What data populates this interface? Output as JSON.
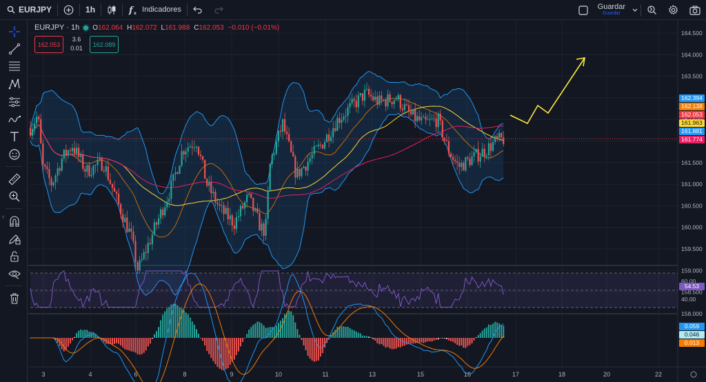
{
  "toolbar": {
    "symbol": "EURJPY",
    "interval": "1h",
    "indicators_label": "Indicadores",
    "save_label": "Guardar",
    "save_sub": "Guardar"
  },
  "legend": {
    "title": "EURJPY · 1h",
    "o_label": "O",
    "o_value": "162.064",
    "h_label": "H",
    "h_value": "162.072",
    "l_label": "L",
    "l_value": "161.988",
    "c_label": "C",
    "c_value": "162.053",
    "change": "−0.010 (−0.01%)",
    "sell_price": "162.053",
    "spread_top": "3.6",
    "spread_bottom": "0.01",
    "buy_price": "162.089"
  },
  "price_axis": [
    "164.500",
    "164.000",
    "163.500",
    "163.000",
    "162.500",
    "162.000",
    "161.500",
    "161.000",
    "160.500",
    "160.000",
    "159.500",
    "159.000",
    "158.500",
    "158.000"
  ],
  "price_tags": [
    {
      "value": "162.394",
      "color": "#2196f3"
    },
    {
      "value": "162.138",
      "color": "#f57c00"
    },
    {
      "value": "162.053",
      "color": "#f23645"
    },
    {
      "value": "161.963",
      "color": "#fdd835"
    },
    {
      "value": "161.881",
      "color": "#2196f3"
    },
    {
      "value": "161.774",
      "color": "#e91e63"
    }
  ],
  "rsi_axis": [
    "60.00",
    "40.00"
  ],
  "rsi_tag": "54.53",
  "macd_tags": [
    {
      "value": "0.059",
      "color": "#2196f3"
    },
    {
      "value": "0.046",
      "color": "#b2ebf2"
    },
    {
      "value": "0.013",
      "color": "#f57c00"
    }
  ],
  "time_axis": [
    "3",
    "4",
    "6",
    "8",
    "9",
    "10",
    "11",
    "13",
    "15",
    "16",
    "17",
    "18",
    "20",
    "22"
  ],
  "colors": {
    "background": "#131722",
    "up": "#26a69a",
    "down": "#ef5350",
    "bb": "#2196f3",
    "ma_slow": "#e91e63",
    "ma_fast": "#fdd835",
    "rsi": "#7e57c2",
    "projection": "#ffeb3b"
  }
}
